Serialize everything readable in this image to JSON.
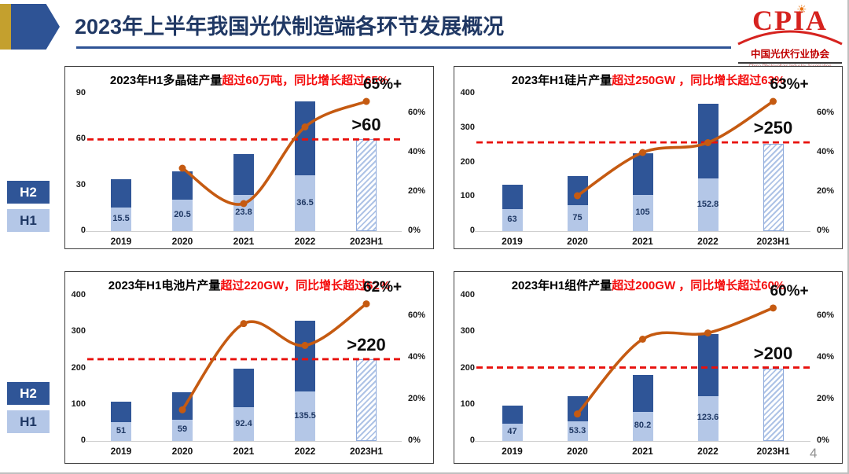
{
  "header": {
    "title": "2023年上半年我国光伏制造端各环节发展概况"
  },
  "logo": {
    "acronym": "CPIA",
    "name_cn": "中国光伏行业协会",
    "name_en": "China Photovoltaic Industry Association"
  },
  "legend": {
    "h2": "H2",
    "h1": "H1"
  },
  "page_number": "4",
  "colors": {
    "h2_bar": "#2F5597",
    "h1_bar": "#B4C7E7",
    "growth_line": "#C55A11",
    "threshold_line": "#E8100C",
    "title_red": "#F40B0B",
    "title_navy": "#203864",
    "value_label": "#1F3864"
  },
  "chart_data": [
    {
      "type": "bar+line",
      "title_black": "2023年H1多晶硅产量",
      "title_red": "超过60万吨，同比增长超过65%",
      "categories": [
        "2019",
        "2020",
        "2021",
        "2022",
        "2023H1"
      ],
      "series": [
        {
          "name": "H1",
          "values": [
            15.5,
            20.5,
            23.8,
            36.5,
            null
          ]
        },
        {
          "name": "H2",
          "values": [
            18.5,
            18.5,
            26.7,
            48.5,
            null
          ]
        }
      ],
      "h1_2023": {
        "value": 60,
        "label": ">60",
        "style": "hatched"
      },
      "threshold": {
        "value": 60
      },
      "growth_line": {
        "x": [
          "2020",
          "2021",
          "2022",
          "2023H1"
        ],
        "values": [
          32,
          14,
          53,
          66
        ],
        "end_label": "65%+"
      },
      "left_axis": {
        "ticks": [
          0,
          30,
          60,
          90
        ],
        "max": 90
      },
      "right_axis": {
        "ticks": [
          0,
          20,
          40,
          60
        ],
        "labels": [
          "0%",
          "20%",
          "40%",
          "60%"
        ],
        "max": 70
      },
      "legend": [
        "H2",
        "H1"
      ],
      "grid": false
    },
    {
      "type": "bar+line",
      "title_black": "2023年H1硅片产量",
      "title_red": "超过250GW ，同比增长超过63%",
      "categories": [
        "2019",
        "2020",
        "2021",
        "2022",
        "2023H1"
      ],
      "series": [
        {
          "name": "H1",
          "values": [
            63,
            75,
            105,
            152.8,
            null
          ]
        },
        {
          "name": "H2",
          "values": [
            72,
            86,
            122,
            217.2,
            null
          ]
        }
      ],
      "h1_2023": {
        "value": 254,
        "label": ">250",
        "style": "hatched"
      },
      "threshold": {
        "value": 258
      },
      "growth_line": {
        "x": [
          "2020",
          "2021",
          "2022",
          "2023H1"
        ],
        "values": [
          18,
          40,
          45,
          66
        ],
        "end_label": "63%+"
      },
      "left_axis": {
        "ticks": [
          0,
          100,
          200,
          300,
          400
        ],
        "max": 400
      },
      "right_axis": {
        "ticks": [
          0,
          20,
          40,
          60
        ],
        "labels": [
          "0%",
          "20%",
          "40%",
          "60%"
        ],
        "max": 70
      },
      "legend": [
        "H2",
        "H1"
      ],
      "grid": false
    },
    {
      "type": "bar+line",
      "title_black": "2023年H1电池片产量",
      "title_red": "超过220GW，同比增长超过62%",
      "categories": [
        "2019",
        "2020",
        "2021",
        "2022",
        "2023H1"
      ],
      "series": [
        {
          "name": "H1",
          "values": [
            51,
            59,
            92.4,
            135.5,
            null
          ]
        },
        {
          "name": "H2",
          "values": [
            58,
            75,
            105.6,
            194.5,
            null
          ]
        }
      ],
      "h1_2023": {
        "value": 224,
        "label": ">220",
        "style": "hatched"
      },
      "threshold": {
        "value": 225
      },
      "growth_line": {
        "x": [
          "2020",
          "2021",
          "2022",
          "2023H1"
        ],
        "values": [
          15,
          56.5,
          46,
          66
        ],
        "end_label": "62%+"
      },
      "left_axis": {
        "ticks": [
          0,
          100,
          200,
          300,
          400
        ],
        "max": 400
      },
      "right_axis": {
        "ticks": [
          0,
          20,
          40,
          60
        ],
        "labels": [
          "0%",
          "20%",
          "40%",
          "60%"
        ],
        "max": 70
      },
      "legend": [
        "H2",
        "H1"
      ],
      "grid": false
    },
    {
      "type": "bar+line",
      "title_black": "2023年H1组件产量",
      "title_red": "超过200GW ，同比增长超过60%",
      "categories": [
        "2019",
        "2020",
        "2021",
        "2022",
        "2023H1"
      ],
      "series": [
        {
          "name": "H1",
          "values": [
            47,
            53.3,
            80.2,
            123.6,
            null
          ]
        },
        {
          "name": "H2",
          "values": [
            51,
            70.7,
            101.8,
            171.4,
            null
          ]
        }
      ],
      "h1_2023": {
        "value": 200,
        "label": ">200",
        "style": "hatched"
      },
      "threshold": {
        "value": 202
      },
      "growth_line": {
        "x": [
          "2020",
          "2021",
          "2022",
          "2023H1"
        ],
        "values": [
          13,
          49,
          52,
          64
        ],
        "end_label": "60%+"
      },
      "left_axis": {
        "ticks": [
          0,
          100,
          200,
          300,
          400
        ],
        "max": 400
      },
      "right_axis": {
        "ticks": [
          0,
          20,
          40,
          60
        ],
        "labels": [
          "0%",
          "20%",
          "40%",
          "60%"
        ],
        "max": 70
      },
      "legend": [
        "H2",
        "H1"
      ],
      "grid": false
    }
  ]
}
